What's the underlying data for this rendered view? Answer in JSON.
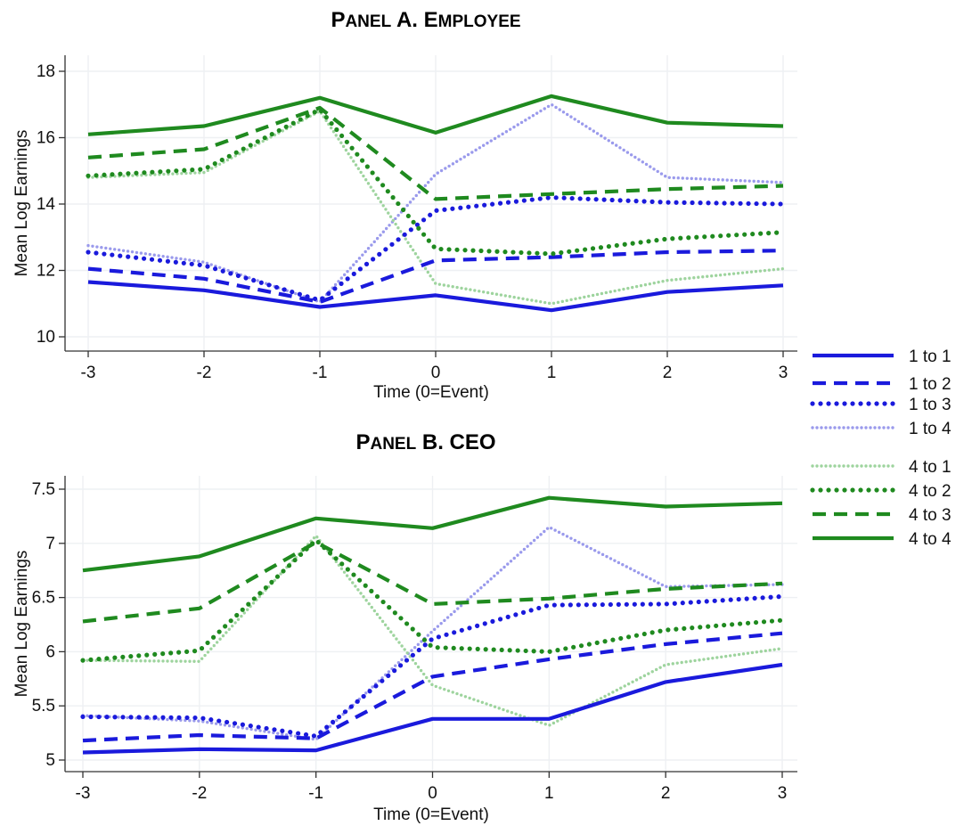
{
  "chart_data": [
    {
      "type": "line",
      "title_parts": [
        {
          "text": "P",
          "small": false
        },
        {
          "text": "ANEL",
          "small": true
        },
        {
          "text": " A. E",
          "small": false
        },
        {
          "text": "MPLOYEE",
          "small": true
        }
      ],
      "xlabel": "Time (0=Event)",
      "ylabel": "Mean Log Earnings",
      "x": [
        -3,
        -2,
        -1,
        0,
        1,
        2,
        3
      ],
      "x_ticks": [
        "-3",
        "-2",
        "-1",
        "0",
        "1",
        "2",
        "3"
      ],
      "y_ticks": [
        "10",
        "12",
        "14",
        "16",
        "18"
      ],
      "ylim": [
        10,
        18
      ],
      "grid": true,
      "series": [
        {
          "name": "1 to 1",
          "values": [
            11.65,
            11.4,
            10.9,
            11.25,
            10.8,
            11.35,
            11.55
          ]
        },
        {
          "name": "1 to 2",
          "values": [
            12.05,
            11.75,
            11.05,
            12.3,
            12.4,
            12.55,
            12.6
          ]
        },
        {
          "name": "1 to 3",
          "values": [
            12.55,
            12.15,
            11.1,
            13.8,
            14.2,
            14.05,
            14.0
          ]
        },
        {
          "name": "1 to 4",
          "values": [
            12.75,
            12.25,
            11.05,
            14.9,
            17.0,
            14.8,
            14.65
          ]
        },
        {
          "name": "4 to 1",
          "values": [
            14.8,
            14.95,
            16.8,
            11.6,
            11.0,
            11.7,
            12.05
          ]
        },
        {
          "name": "4 to 2",
          "values": [
            14.85,
            15.05,
            16.85,
            12.65,
            12.5,
            12.95,
            13.15
          ]
        },
        {
          "name": "4 to 3",
          "values": [
            15.4,
            15.65,
            16.9,
            14.15,
            14.3,
            14.45,
            14.55
          ]
        },
        {
          "name": "4 to 4",
          "values": [
            16.1,
            16.35,
            17.2,
            16.15,
            17.25,
            16.45,
            16.35
          ]
        }
      ]
    },
    {
      "type": "line",
      "title_parts": [
        {
          "text": "P",
          "small": false
        },
        {
          "text": "ANEL",
          "small": true
        },
        {
          "text": " B. CEO",
          "small": false
        }
      ],
      "xlabel": "Time (0=Event)",
      "ylabel": "Mean Log Earnings",
      "x": [
        -3,
        -2,
        -1,
        0,
        1,
        2,
        3
      ],
      "x_ticks": [
        "-3",
        "-2",
        "-1",
        "0",
        "1",
        "2",
        "3"
      ],
      "y_ticks": [
        "5",
        "5.5",
        "6",
        "6.5",
        "7",
        "7.5"
      ],
      "ylim": [
        5,
        7.5
      ],
      "grid": true,
      "series": [
        {
          "name": "1 to 1",
          "values": [
            5.07,
            5.1,
            5.09,
            5.38,
            5.38,
            5.72,
            5.88
          ]
        },
        {
          "name": "1 to 2",
          "values": [
            5.18,
            5.23,
            5.2,
            5.77,
            5.93,
            6.07,
            6.17
          ]
        },
        {
          "name": "1 to 3",
          "values": [
            5.4,
            5.39,
            5.22,
            6.12,
            6.43,
            6.44,
            6.51
          ]
        },
        {
          "name": "1 to 4",
          "values": [
            5.41,
            5.36,
            5.19,
            6.19,
            7.15,
            6.6,
            6.62
          ]
        },
        {
          "name": "4 to 1",
          "values": [
            5.92,
            5.91,
            7.07,
            5.69,
            5.32,
            5.88,
            6.03
          ]
        },
        {
          "name": "4 to 2",
          "values": [
            5.92,
            6.01,
            7.03,
            6.04,
            6.0,
            6.2,
            6.29
          ]
        },
        {
          "name": "4 to 3",
          "values": [
            6.28,
            6.4,
            7.01,
            6.44,
            6.49,
            6.58,
            6.63
          ]
        },
        {
          "name": "4 to 4",
          "values": [
            6.75,
            6.88,
            7.23,
            7.14,
            7.42,
            7.34,
            7.37
          ]
        }
      ]
    }
  ],
  "legend": {
    "placement": "right",
    "items": [
      {
        "label": "1 to 1",
        "color": "#1a1adc",
        "style": "solid"
      },
      {
        "label": "1 to 2",
        "color": "#1a1adc",
        "style": "dash"
      },
      {
        "label": "1 to 3",
        "color": "#1a1adc",
        "style": "dot"
      },
      {
        "label": "1 to 4",
        "color": "#9a9aec",
        "style": "dot-light"
      },
      {
        "label": "4 to 1",
        "color": "#9ed49e",
        "style": "dot-light"
      },
      {
        "label": "4 to 2",
        "color": "#1f8a1f",
        "style": "dot"
      },
      {
        "label": "4 to 3",
        "color": "#1f8a1f",
        "style": "dash"
      },
      {
        "label": "4 to 4",
        "color": "#1f8a1f",
        "style": "solid"
      }
    ]
  },
  "colors": {
    "blue": "#1a1adc",
    "light_blue": "#9a9aec",
    "green": "#1f8a1f",
    "light_green": "#9ed49e",
    "grid": "#eef0f3"
  }
}
